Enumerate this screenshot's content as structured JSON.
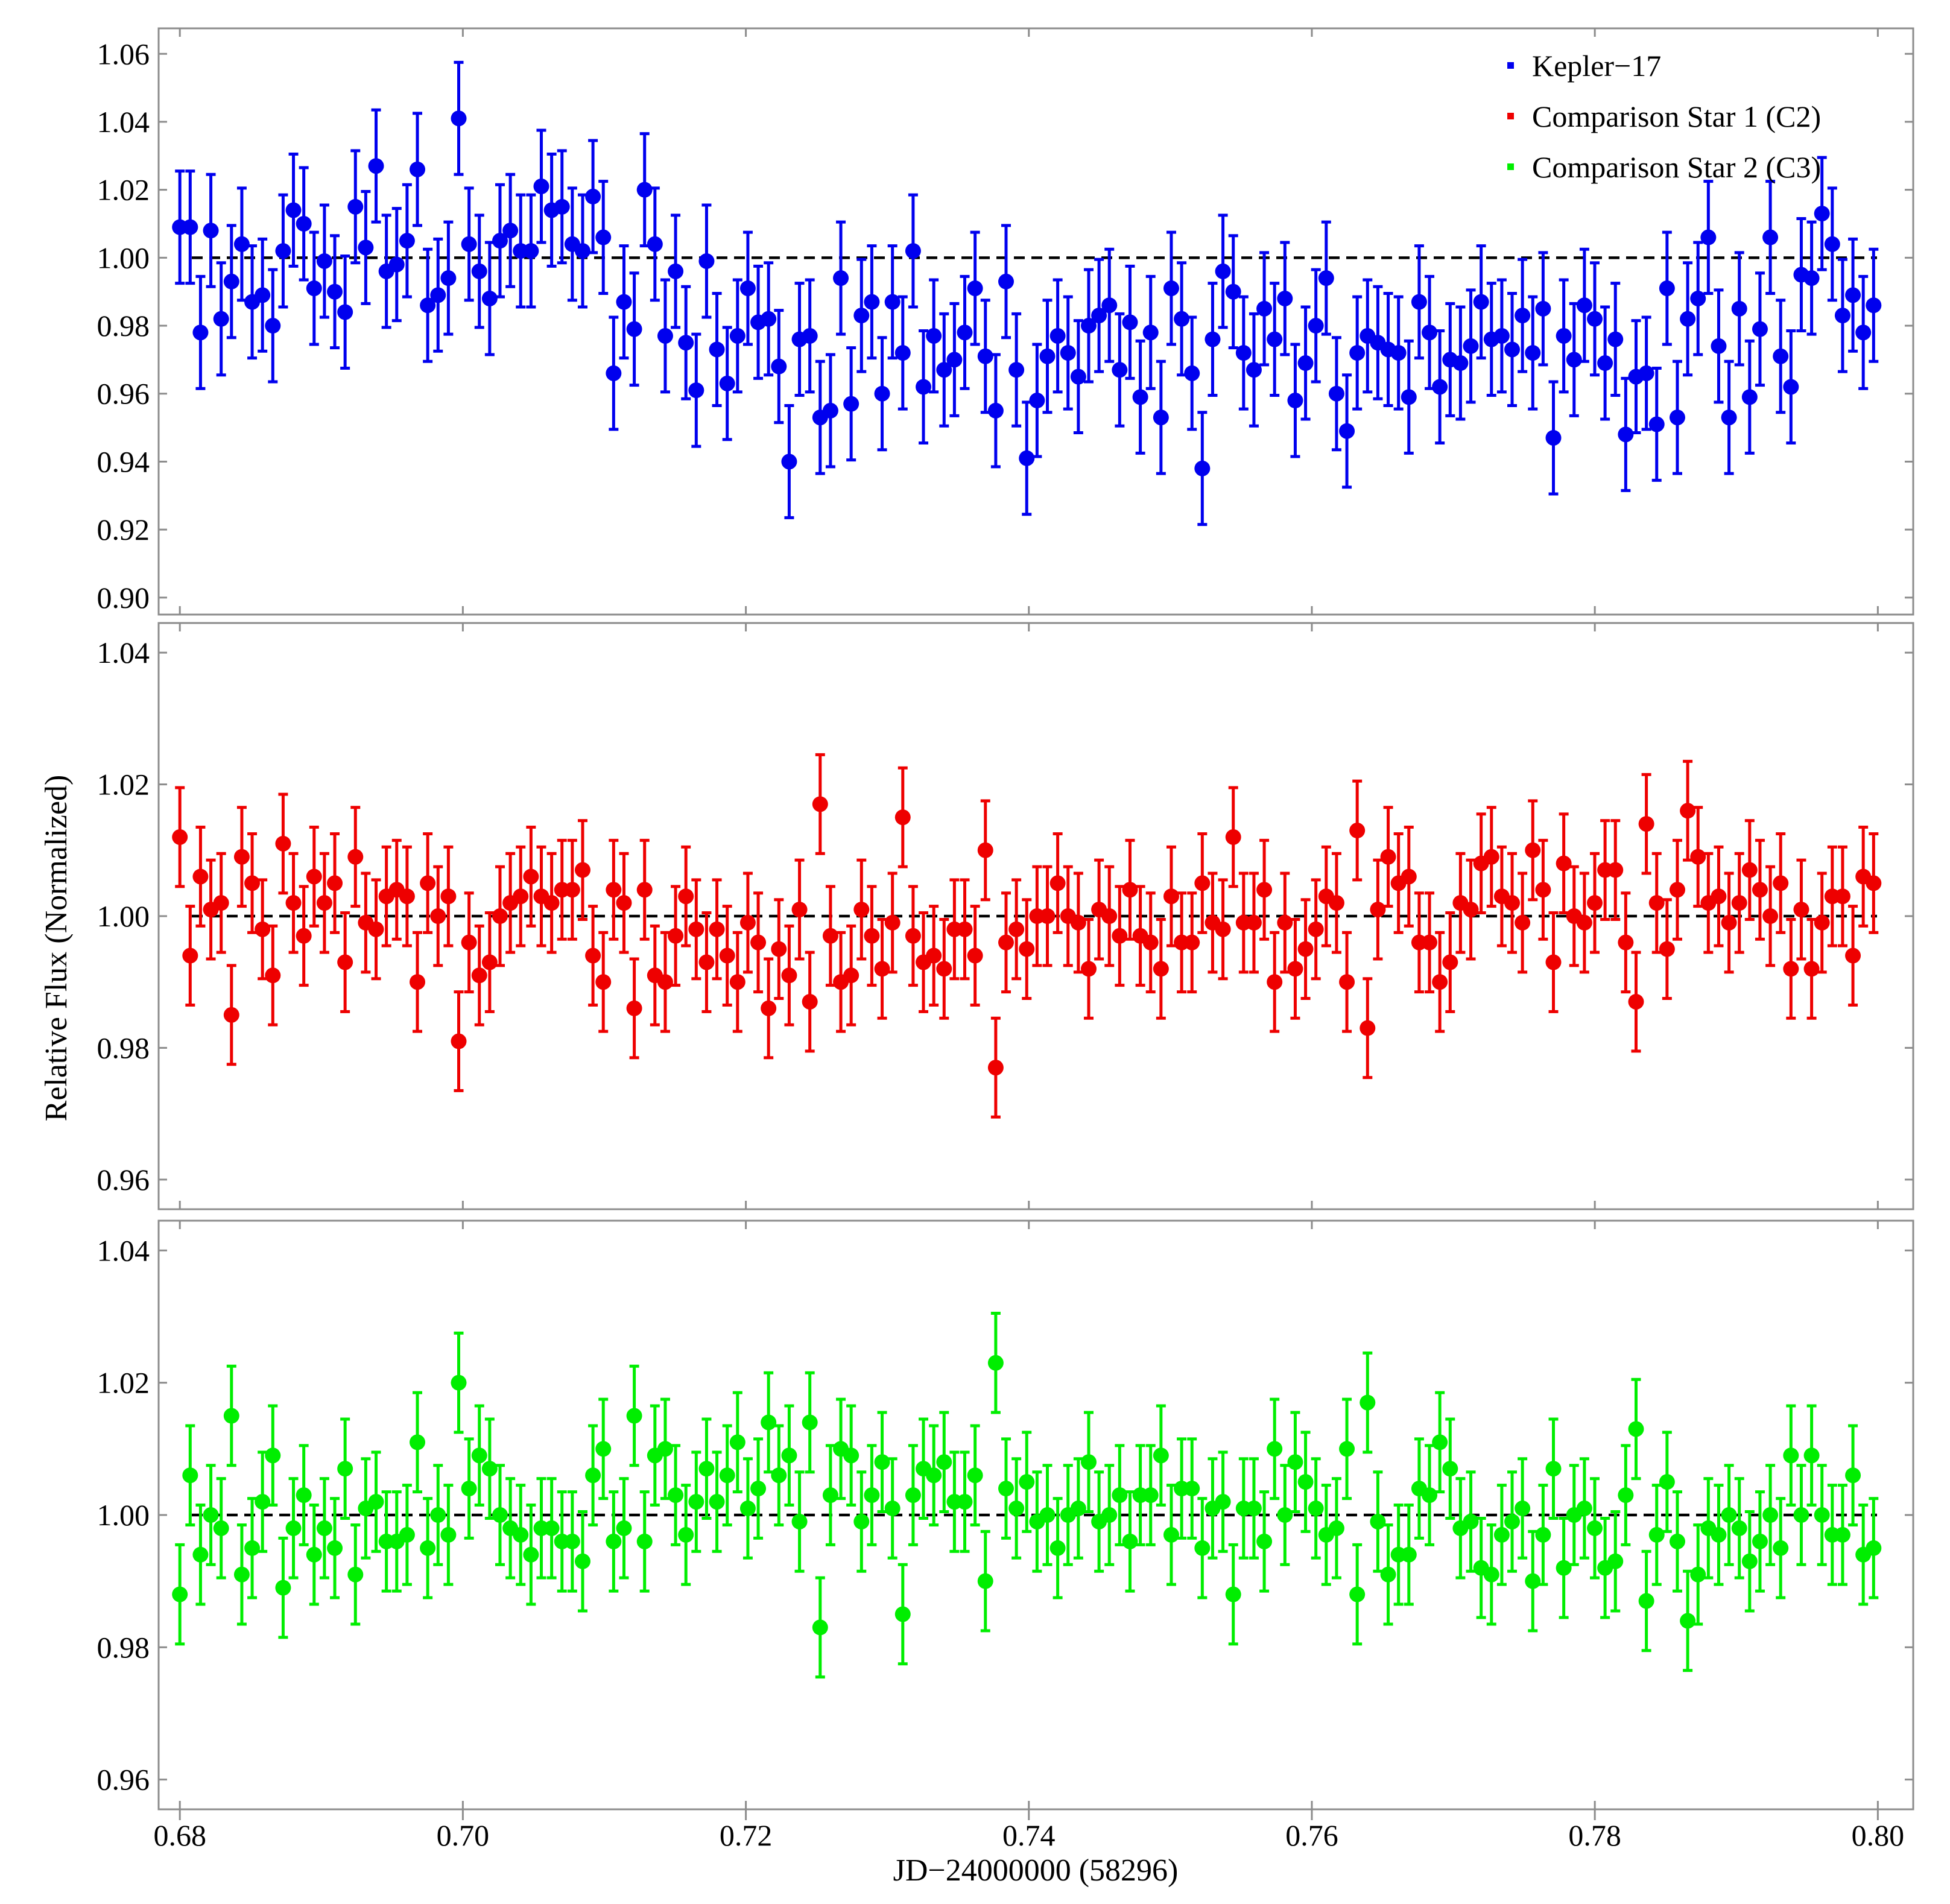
{
  "chart_data": {
    "type": "scatter",
    "layout": "three vertically stacked panels sharing the x axis",
    "xlabel": "JD−24000000 (58296)",
    "ylabel": "Relative  Flux  (Normalized)",
    "x_ticks": [
      "0.68",
      "0.70",
      "0.72",
      "0.74",
      "0.76",
      "0.78",
      "0.80"
    ],
    "xlim": [
      0.6785,
      0.8025
    ],
    "reference_line": 1.0,
    "error_bar": "± about 0.016 (Kepler-17) and ± about 0.0075 (comparison stars)",
    "legend": {
      "placement": "top-right of top panel",
      "entries": [
        {
          "label": "Kepler−17",
          "color": "#0000ee"
        },
        {
          "label": "Comparison Star 1 (C2)",
          "color": "#ee0000"
        },
        {
          "label": "Comparison Star 2 (C3)",
          "color": "#00ee00"
        }
      ]
    },
    "panels": [
      {
        "series_name": "Kepler−17",
        "color": "#0000ee",
        "ylim": [
          0.895,
          1.0675
        ],
        "y_ticks": [
          "0.90",
          "0.92",
          "0.94",
          "0.96",
          "0.98",
          "1.00",
          "1.02",
          "1.04",
          "1.06"
        ],
        "err": 0.0165,
        "values": [
          1.009,
          1.009,
          0.978,
          1.008,
          0.982,
          0.993,
          1.004,
          0.987,
          0.989,
          0.98,
          1.002,
          1.014,
          1.01,
          0.991,
          0.999,
          0.99,
          0.984,
          1.015,
          1.003,
          1.027,
          0.996,
          0.998,
          1.005,
          1.026,
          0.986,
          0.989,
          0.994,
          1.041,
          1.004,
          0.996,
          0.988,
          1.005,
          1.008,
          1.002,
          1.002,
          1.021,
          1.014,
          1.015,
          1.004,
          1.002,
          1.018,
          1.006,
          0.966,
          0.987,
          0.979,
          1.02,
          1.004,
          0.977,
          0.996,
          0.975,
          0.961,
          0.999,
          0.973,
          0.963,
          0.977,
          0.991,
          0.981,
          0.982,
          0.968,
          0.94,
          0.976,
          0.977,
          0.953,
          0.955,
          0.994,
          0.957,
          0.983,
          0.987,
          0.96,
          0.987,
          0.972,
          1.002,
          0.962,
          0.977,
          0.967,
          0.97,
          0.978,
          0.991,
          0.971,
          0.955,
          0.993,
          0.967,
          0.941,
          0.958,
          0.971,
          0.977,
          0.972,
          0.965,
          0.98,
          0.983,
          0.986,
          0.967,
          0.981,
          0.959,
          0.978,
          0.953,
          0.991,
          0.982,
          0.966,
          0.938,
          0.976,
          0.996,
          0.99,
          0.972,
          0.967,
          0.985,
          0.976,
          0.988,
          0.958,
          0.969,
          0.98,
          0.994,
          0.96,
          0.949,
          0.972,
          0.977,
          0.975,
          0.973,
          0.972,
          0.959,
          0.987,
          0.978,
          0.962,
          0.97,
          0.969,
          0.974,
          0.987,
          0.976,
          0.977,
          0.973,
          0.983,
          0.972,
          0.985,
          0.947,
          0.977,
          0.97,
          0.986,
          0.982,
          0.969,
          0.976,
          0.948,
          0.965,
          0.966,
          0.951,
          0.991,
          0.953,
          0.982,
          0.988,
          1.006,
          0.974,
          0.953,
          0.985,
          0.959,
          0.979,
          1.006,
          0.971,
          0.962,
          0.995,
          0.994,
          1.013,
          1.004,
          0.983,
          0.989,
          0.978,
          0.986
        ]
      },
      {
        "series_name": "Comparison Star 1 (C2)",
        "color": "#ee0000",
        "ylim": [
          0.9555,
          1.0445
        ],
        "y_ticks": [
          "0.96",
          "0.98",
          "1.00",
          "1.02",
          "1.04"
        ],
        "err": 0.0075,
        "values": [
          1.012,
          0.994,
          1.006,
          1.001,
          1.002,
          0.985,
          1.009,
          1.005,
          0.998,
          0.991,
          1.011,
          1.002,
          0.997,
          1.006,
          1.002,
          1.005,
          0.993,
          1.009,
          0.999,
          0.998,
          1.003,
          1.004,
          1.003,
          0.99,
          1.005,
          1.0,
          1.003,
          0.981,
          0.996,
          0.991,
          0.993,
          1.0,
          1.002,
          1.003,
          1.006,
          1.003,
          1.002,
          1.004,
          1.004,
          1.007,
          0.994,
          0.99,
          1.004,
          1.002,
          0.986,
          1.004,
          0.991,
          0.99,
          0.997,
          1.003,
          0.998,
          0.993,
          0.998,
          0.994,
          0.99,
          0.999,
          0.996,
          0.986,
          0.995,
          0.991,
          1.001,
          0.987,
          1.017,
          0.997,
          0.99,
          0.991,
          1.001,
          0.997,
          0.992,
          0.999,
          1.015,
          0.997,
          0.993,
          0.994,
          0.992,
          0.998,
          0.998,
          0.994,
          1.01,
          0.977,
          0.996,
          0.998,
          0.995,
          1.0,
          1.0,
          1.005,
          1.0,
          0.999,
          0.992,
          1.001,
          1.0,
          0.997,
          1.004,
          0.997,
          0.996,
          0.992,
          1.003,
          0.996,
          0.996,
          1.005,
          0.999,
          0.998,
          1.012,
          0.999,
          0.999,
          1.004,
          0.99,
          0.999,
          0.992,
          0.995,
          0.998,
          1.003,
          1.002,
          0.99,
          1.013,
          0.983,
          1.001,
          1.009,
          1.005,
          1.006,
          0.996,
          0.996,
          0.99,
          0.993,
          1.002,
          1.001,
          1.008,
          1.009,
          1.003,
          1.002,
          0.999,
          1.01,
          1.004,
          0.993,
          1.008,
          1.0,
          0.999,
          1.002,
          1.007,
          1.007,
          0.996,
          0.987,
          1.014,
          1.002,
          0.995,
          1.004,
          1.016,
          1.009,
          1.002,
          1.003,
          0.999,
          1.002,
          1.007,
          1.004,
          1.0,
          1.005,
          0.992,
          1.001,
          0.992,
          0.999,
          1.003,
          1.003,
          0.994,
          1.006,
          1.005
        ]
      },
      {
        "series_name": "Comparison Star 2 (C3)",
        "color": "#00ee00",
        "ylim": [
          0.9555,
          1.0445
        ],
        "y_ticks": [
          "0.96",
          "0.98",
          "1.00",
          "1.02",
          "1.04"
        ],
        "err": 0.0075,
        "values": [
          0.988,
          1.006,
          0.994,
          1.0,
          0.998,
          1.015,
          0.991,
          0.995,
          1.002,
          1.009,
          0.989,
          0.998,
          1.003,
          0.994,
          0.998,
          0.995,
          1.007,
          0.991,
          1.001,
          1.002,
          0.996,
          0.996,
          0.997,
          1.011,
          0.995,
          1.0,
          0.997,
          1.02,
          1.004,
          1.009,
          1.007,
          1.0,
          0.998,
          0.997,
          0.994,
          0.998,
          0.998,
          0.996,
          0.996,
          0.993,
          1.006,
          1.01,
          0.996,
          0.998,
          1.015,
          0.996,
          1.009,
          1.01,
          1.003,
          0.997,
          1.002,
          1.007,
          1.002,
          1.006,
          1.011,
          1.001,
          1.004,
          1.014,
          1.006,
          1.009,
          0.999,
          1.014,
          0.983,
          1.003,
          1.01,
          1.009,
          0.999,
          1.003,
          1.008,
          1.001,
          0.985,
          1.003,
          1.007,
          1.006,
          1.008,
          1.002,
          1.002,
          1.006,
          0.99,
          1.023,
          1.004,
          1.001,
          1.005,
          0.999,
          1.0,
          0.995,
          1.0,
          1.001,
          1.008,
          0.999,
          1.0,
          1.003,
          0.996,
          1.003,
          1.003,
          1.009,
          0.997,
          1.004,
          1.004,
          0.995,
          1.001,
          1.002,
          0.988,
          1.001,
          1.001,
          0.996,
          1.01,
          1.0,
          1.008,
          1.005,
          1.001,
          0.997,
          0.998,
          1.01,
          0.988,
          1.017,
          0.999,
          0.991,
          0.994,
          0.994,
          1.004,
          1.003,
          1.011,
          1.007,
          0.998,
          0.999,
          0.992,
          0.991,
          0.997,
          0.999,
          1.001,
          0.99,
          0.997,
          1.007,
          0.992,
          1.0,
          1.001,
          0.998,
          0.992,
          0.993,
          1.003,
          1.013,
          0.987,
          0.997,
          1.005,
          0.996,
          0.984,
          0.991,
          0.998,
          0.997,
          1.0,
          0.998,
          0.993,
          0.996,
          1.0,
          0.995,
          1.009,
          1.0,
          1.009,
          1.0,
          0.997,
          0.997,
          1.006,
          0.994,
          0.995
        ]
      }
    ]
  }
}
